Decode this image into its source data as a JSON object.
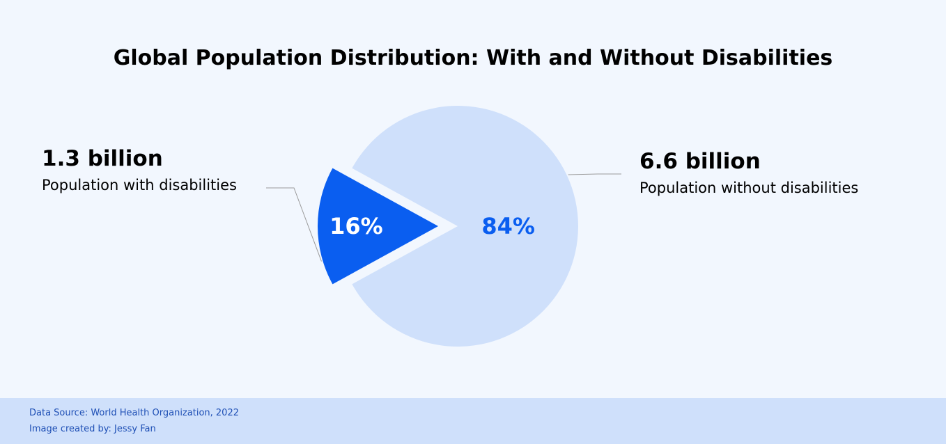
{
  "chart_data": {
    "type": "pie",
    "title": "Global Population Distribution: With and Without Disabilities",
    "slices": [
      {
        "label": "Population with disabilities",
        "amount": "1.3 billion",
        "percent_label": "16%",
        "value": 16,
        "color": "#0a5ef0",
        "label_color": "#ffffff",
        "exploded": true
      },
      {
        "label": "Population without disabilities",
        "amount": "6.6 billion",
        "percent_label": "84%",
        "value": 84,
        "color": "#cfe0fb",
        "label_color": "#0a5ef0",
        "exploded": false
      }
    ]
  },
  "footer": {
    "source": "Data Source: World Health Organization, 2022",
    "credit": "Image created by: Jessy Fan"
  },
  "colors": {
    "background": "#f2f7fe",
    "footer_background": "#cfe0fb",
    "footer_text": "#1e4fb5",
    "leader_line": "#9a9a9a"
  }
}
